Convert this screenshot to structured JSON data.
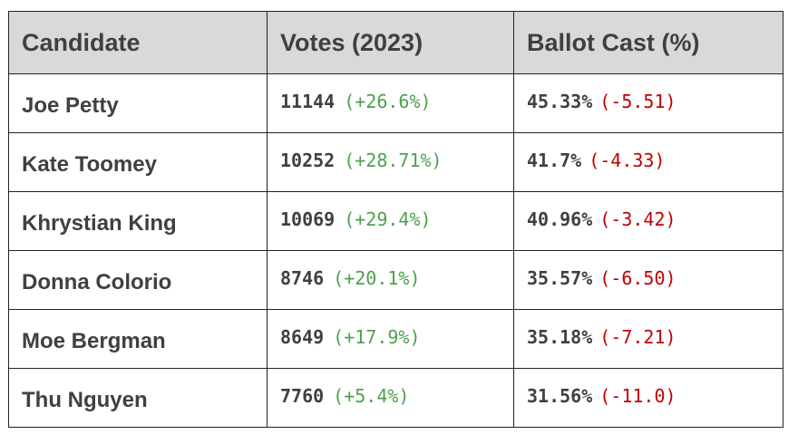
{
  "chart_data": {
    "type": "table",
    "headers": [
      "Candidate",
      "Votes (2023)",
      "Ballot Cast (%)"
    ],
    "colors": {
      "header_bg": "#d9d9d9",
      "text": "#404040",
      "positive_change": "#4ea04e",
      "negative_change": "#c00000"
    },
    "rows": [
      {
        "candidate": "Joe Petty",
        "votes": "11144",
        "votes_change": "(+26.6%)",
        "ballot": "45.33%",
        "ballot_change": "(-5.51)"
      },
      {
        "candidate": "Kate Toomey",
        "votes": "10252",
        "votes_change": "(+28.71%)",
        "ballot": "41.7%",
        "ballot_change": "(-4.33)"
      },
      {
        "candidate": "Khrystian King",
        "votes": "10069",
        "votes_change": "(+29.4%)",
        "ballot": "40.96%",
        "ballot_change": "(-3.42)"
      },
      {
        "candidate": "Donna Colorio",
        "votes": "8746",
        "votes_change": "(+20.1%)",
        "ballot": "35.57%",
        "ballot_change": "(-6.50)"
      },
      {
        "candidate": "Moe Bergman",
        "votes": "8649",
        "votes_change": "(+17.9%)",
        "ballot": "35.18%",
        "ballot_change": "(-7.21)"
      },
      {
        "candidate": "Thu Nguyen",
        "votes": "7760",
        "votes_change": "(+5.4%)",
        "ballot": "31.56%",
        "ballot_change": "(-11.0)"
      }
    ]
  }
}
